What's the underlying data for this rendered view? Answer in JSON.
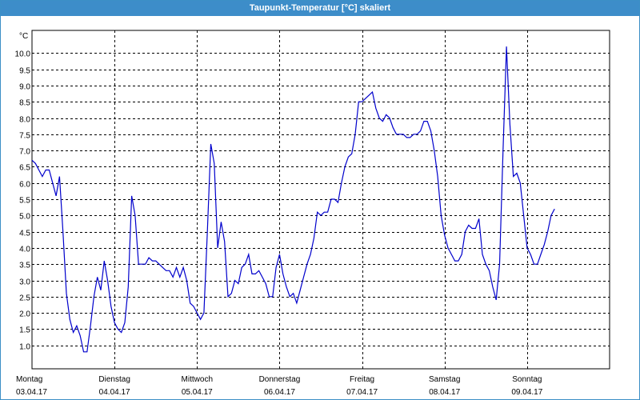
{
  "window": {
    "title": "Taupunkt-Temperatur [°C] skaliert"
  },
  "chart_data": {
    "type": "line",
    "title": "Taupunkt-Temperatur [°C] skaliert",
    "y_unit": "°C",
    "ylim": [
      0.5,
      10.5
    ],
    "y_ticks": [
      "1.0",
      "1.5",
      "2.0",
      "2.5",
      "3.0",
      "3.5",
      "4.0",
      "4.5",
      "5.0",
      "5.5",
      "6.0",
      "6.5",
      "7.0",
      "7.5",
      "8.0",
      "8.5",
      "9.0",
      "9.5",
      "10.0"
    ],
    "x_start": "2017-04-03T00:00",
    "x_end": "2017-04-10T00:00",
    "x_labels": [
      {
        "day": "Montag",
        "date": "03.04.17"
      },
      {
        "day": "Dienstag",
        "date": "04.04.17"
      },
      {
        "day": "Mittwoch",
        "date": "05.04.17"
      },
      {
        "day": "Donnerstag",
        "date": "06.04.17"
      },
      {
        "day": "Freitag",
        "date": "07.04.17"
      },
      {
        "day": "Samstag",
        "date": "08.04.17"
      },
      {
        "day": "Sonntag",
        "date": "09.04.17"
      }
    ],
    "grid": true,
    "series": [
      {
        "color": "#0000cc",
        "points": [
          [
            "2017-04-03T00:00",
            6.7
          ],
          [
            "2017-04-03T01:00",
            6.6
          ],
          [
            "2017-04-03T02:00",
            6.4
          ],
          [
            "2017-04-03T03:00",
            6.2
          ],
          [
            "2017-04-03T04:00",
            6.4
          ],
          [
            "2017-04-03T05:00",
            6.4
          ],
          [
            "2017-04-03T06:00",
            6.0
          ],
          [
            "2017-04-03T07:00",
            5.6
          ],
          [
            "2017-04-03T08:00",
            6.2
          ],
          [
            "2017-04-03T09:00",
            4.5
          ],
          [
            "2017-04-03T10:00",
            2.6
          ],
          [
            "2017-04-03T11:00",
            1.8
          ],
          [
            "2017-04-03T12:00",
            1.4
          ],
          [
            "2017-04-03T13:00",
            1.6
          ],
          [
            "2017-04-03T14:00",
            1.3
          ],
          [
            "2017-04-03T15:00",
            0.8
          ],
          [
            "2017-04-03T16:00",
            0.8
          ],
          [
            "2017-04-03T17:00",
            1.6
          ],
          [
            "2017-04-03T18:00",
            2.5
          ],
          [
            "2017-04-03T19:00",
            3.1
          ],
          [
            "2017-04-03T20:00",
            2.7
          ],
          [
            "2017-04-03T21:00",
            3.6
          ],
          [
            "2017-04-03T22:00",
            3.0
          ],
          [
            "2017-04-03T23:00",
            2.2
          ],
          [
            "2017-04-04T00:00",
            1.7
          ],
          [
            "2017-04-04T01:00",
            1.5
          ],
          [
            "2017-04-04T02:00",
            1.4
          ],
          [
            "2017-04-04T03:00",
            1.7
          ],
          [
            "2017-04-04T04:00",
            2.8
          ],
          [
            "2017-04-04T05:00",
            5.6
          ],
          [
            "2017-04-04T06:00",
            5.0
          ],
          [
            "2017-04-04T07:00",
            3.5
          ],
          [
            "2017-04-04T08:00",
            3.5
          ],
          [
            "2017-04-04T09:00",
            3.5
          ],
          [
            "2017-04-04T10:00",
            3.7
          ],
          [
            "2017-04-04T11:00",
            3.6
          ],
          [
            "2017-04-04T12:00",
            3.6
          ],
          [
            "2017-04-04T13:00",
            3.5
          ],
          [
            "2017-04-04T14:00",
            3.4
          ],
          [
            "2017-04-04T15:00",
            3.3
          ],
          [
            "2017-04-04T16:00",
            3.3
          ],
          [
            "2017-04-04T17:00",
            3.1
          ],
          [
            "2017-04-04T18:00",
            3.4
          ],
          [
            "2017-04-04T19:00",
            3.1
          ],
          [
            "2017-04-04T20:00",
            3.4
          ],
          [
            "2017-04-04T21:00",
            3.0
          ],
          [
            "2017-04-04T22:00",
            2.3
          ],
          [
            "2017-04-04T23:00",
            2.2
          ],
          [
            "2017-04-05T00:00",
            2.0
          ],
          [
            "2017-04-05T01:00",
            1.8
          ],
          [
            "2017-04-05T02:00",
            2.0
          ],
          [
            "2017-04-05T03:00",
            4.5
          ],
          [
            "2017-04-05T04:00",
            7.2
          ],
          [
            "2017-04-05T05:00",
            6.6
          ],
          [
            "2017-04-05T06:00",
            4.0
          ],
          [
            "2017-04-05T07:00",
            4.8
          ],
          [
            "2017-04-05T08:00",
            4.2
          ],
          [
            "2017-04-05T09:00",
            2.5
          ],
          [
            "2017-04-05T10:00",
            2.6
          ],
          [
            "2017-04-05T11:00",
            3.0
          ],
          [
            "2017-04-05T12:00",
            2.9
          ],
          [
            "2017-04-05T13:00",
            3.4
          ],
          [
            "2017-04-05T14:00",
            3.5
          ],
          [
            "2017-04-05T15:00",
            3.8
          ],
          [
            "2017-04-05T16:00",
            3.2
          ],
          [
            "2017-04-05T17:00",
            3.2
          ],
          [
            "2017-04-05T18:00",
            3.3
          ],
          [
            "2017-04-05T19:00",
            3.1
          ],
          [
            "2017-04-05T20:00",
            2.9
          ],
          [
            "2017-04-05T21:00",
            2.5
          ],
          [
            "2017-04-05T22:00",
            2.5
          ],
          [
            "2017-04-05T23:00",
            3.4
          ],
          [
            "2017-04-06T00:00",
            3.8
          ],
          [
            "2017-04-06T01:00",
            3.2
          ],
          [
            "2017-04-06T02:00",
            2.8
          ],
          [
            "2017-04-06T03:00",
            2.5
          ],
          [
            "2017-04-06T04:00",
            2.6
          ],
          [
            "2017-04-06T05:00",
            2.3
          ],
          [
            "2017-04-06T06:00",
            2.7
          ],
          [
            "2017-04-06T07:00",
            3.1
          ],
          [
            "2017-04-06T08:00",
            3.5
          ],
          [
            "2017-04-06T09:00",
            3.8
          ],
          [
            "2017-04-06T10:00",
            4.3
          ],
          [
            "2017-04-06T11:00",
            5.1
          ],
          [
            "2017-04-06T12:00",
            5.0
          ],
          [
            "2017-04-06T13:00",
            5.1
          ],
          [
            "2017-04-06T14:00",
            5.1
          ],
          [
            "2017-04-06T15:00",
            5.5
          ],
          [
            "2017-04-06T16:00",
            5.5
          ],
          [
            "2017-04-06T17:00",
            5.4
          ],
          [
            "2017-04-06T18:00",
            6.0
          ],
          [
            "2017-04-06T19:00",
            6.5
          ],
          [
            "2017-04-06T20:00",
            6.8
          ],
          [
            "2017-04-06T21:00",
            6.9
          ],
          [
            "2017-04-06T22:00",
            7.5
          ],
          [
            "2017-04-06T23:00",
            8.5
          ],
          [
            "2017-04-07T00:00",
            8.5
          ],
          [
            "2017-04-07T01:00",
            8.6
          ],
          [
            "2017-04-07T02:00",
            8.7
          ],
          [
            "2017-04-07T03:00",
            8.8
          ],
          [
            "2017-04-07T04:00",
            8.3
          ],
          [
            "2017-04-07T05:00",
            8.0
          ],
          [
            "2017-04-07T06:00",
            7.9
          ],
          [
            "2017-04-07T07:00",
            8.1
          ],
          [
            "2017-04-07T08:00",
            8.0
          ],
          [
            "2017-04-07T09:00",
            7.7
          ],
          [
            "2017-04-07T10:00",
            7.5
          ],
          [
            "2017-04-07T11:00",
            7.5
          ],
          [
            "2017-04-07T12:00",
            7.5
          ],
          [
            "2017-04-07T13:00",
            7.4
          ],
          [
            "2017-04-07T14:00",
            7.4
          ],
          [
            "2017-04-07T15:00",
            7.5
          ],
          [
            "2017-04-07T16:00",
            7.5
          ],
          [
            "2017-04-07T17:00",
            7.6
          ],
          [
            "2017-04-07T18:00",
            7.9
          ],
          [
            "2017-04-07T19:00",
            7.9
          ],
          [
            "2017-04-07T20:00",
            7.6
          ],
          [
            "2017-04-07T21:00",
            7.0
          ],
          [
            "2017-04-07T22:00",
            6.2
          ],
          [
            "2017-04-07T23:00",
            5.0
          ],
          [
            "2017-04-08T00:00",
            4.4
          ],
          [
            "2017-04-08T01:00",
            4.0
          ],
          [
            "2017-04-08T02:00",
            3.8
          ],
          [
            "2017-04-08T03:00",
            3.6
          ],
          [
            "2017-04-08T04:00",
            3.6
          ],
          [
            "2017-04-08T05:00",
            3.8
          ],
          [
            "2017-04-08T06:00",
            4.5
          ],
          [
            "2017-04-08T07:00",
            4.7
          ],
          [
            "2017-04-08T08:00",
            4.6
          ],
          [
            "2017-04-08T09:00",
            4.6
          ],
          [
            "2017-04-08T10:00",
            4.9
          ],
          [
            "2017-04-08T11:00",
            3.8
          ],
          [
            "2017-04-08T12:00",
            3.5
          ],
          [
            "2017-04-08T13:00",
            3.3
          ],
          [
            "2017-04-08T14:00",
            2.8
          ],
          [
            "2017-04-08T15:00",
            2.4
          ],
          [
            "2017-04-08T16:00",
            3.5
          ],
          [
            "2017-04-08T17:00",
            7.0
          ],
          [
            "2017-04-08T18:00",
            10.2
          ],
          [
            "2017-04-08T19:00",
            7.8
          ],
          [
            "2017-04-08T20:00",
            6.2
          ],
          [
            "2017-04-08T21:00",
            6.3
          ],
          [
            "2017-04-08T22:00",
            6.0
          ],
          [
            "2017-04-08T23:00",
            5.0
          ],
          [
            "2017-04-09T00:00",
            4.0
          ],
          [
            "2017-04-09T01:00",
            3.8
          ],
          [
            "2017-04-09T02:00",
            3.5
          ],
          [
            "2017-04-09T03:00",
            3.5
          ],
          [
            "2017-04-09T04:00",
            3.8
          ],
          [
            "2017-04-09T05:00",
            4.1
          ],
          [
            "2017-04-09T06:00",
            4.5
          ],
          [
            "2017-04-09T07:00",
            5.0
          ],
          [
            "2017-04-09T08:00",
            5.2
          ]
        ]
      }
    ]
  }
}
